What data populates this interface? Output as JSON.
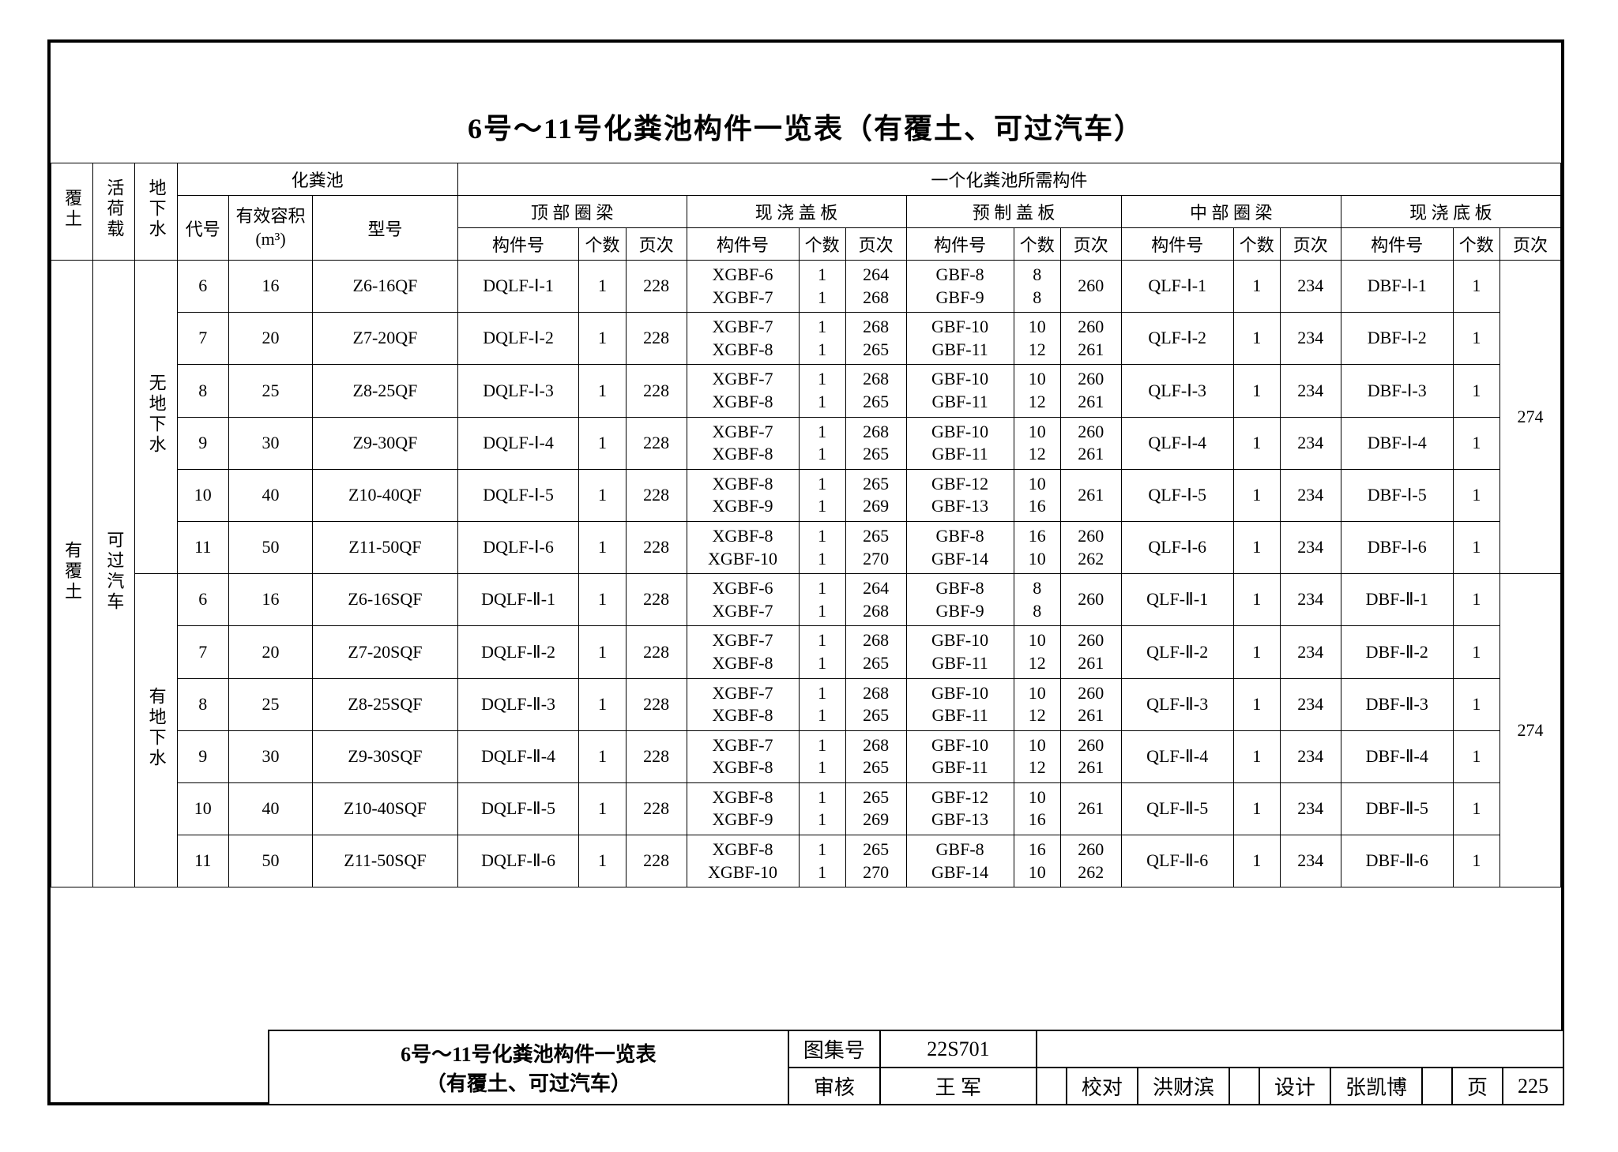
{
  "title": "6号～11号化粪池构件一览表（有覆土、可过汽车）",
  "header": {
    "col_futu": "覆土",
    "col_hehe": "活荷载",
    "col_dixiashui": "地下水",
    "huafenchi": "化粪池",
    "yige": "一个化粪池所需构件",
    "daihao": "代号",
    "rongji": "有效容积\n(m³)",
    "xinghao": "型号",
    "dingbu": "顶 部 圈 梁",
    "xianjiao1": "现 浇 盖 板",
    "yuzhi": "预 制 盖 板",
    "zhongbu": "中 部 圈 梁",
    "xianjiao2": "现 浇 底 板",
    "gjh": "构件号",
    "gs": "个数",
    "yc": "页次"
  },
  "left": {
    "futu": "有覆土",
    "hehe": "可过汽车",
    "wudixia": "无地下水",
    "youdixia": "有地下水"
  },
  "set1_page": "274",
  "set2_page": "274",
  "rows1": [
    {
      "dh": "6",
      "rj": "16",
      "xh": "Z6-16QF",
      "db": "DQLF-Ⅰ-1",
      "dbn": "1",
      "dby": "228",
      "xg": "XGBF-6\nXGBF-7",
      "xgn": "1\n1",
      "xgy": "264\n268",
      "yz": "GBF-8\nGBF-9",
      "yzn": "8\n8",
      "yzy": "260",
      "zb": "QLF-Ⅰ-1",
      "zbn": "1",
      "zby": "234",
      "dp": "DBF-Ⅰ-1",
      "dpn": "1"
    },
    {
      "dh": "7",
      "rj": "20",
      "xh": "Z7-20QF",
      "db": "DQLF-Ⅰ-2",
      "dbn": "1",
      "dby": "228",
      "xg": "XGBF-7\nXGBF-8",
      "xgn": "1\n1",
      "xgy": "268\n265",
      "yz": "GBF-10\nGBF-11",
      "yzn": "10\n12",
      "yzy": "260\n261",
      "zb": "QLF-Ⅰ-2",
      "zbn": "1",
      "zby": "234",
      "dp": "DBF-Ⅰ-2",
      "dpn": "1"
    },
    {
      "dh": "8",
      "rj": "25",
      "xh": "Z8-25QF",
      "db": "DQLF-Ⅰ-3",
      "dbn": "1",
      "dby": "228",
      "xg": "XGBF-7\nXGBF-8",
      "xgn": "1\n1",
      "xgy": "268\n265",
      "yz": "GBF-10\nGBF-11",
      "yzn": "10\n12",
      "yzy": "260\n261",
      "zb": "QLF-Ⅰ-3",
      "zbn": "1",
      "zby": "234",
      "dp": "DBF-Ⅰ-3",
      "dpn": "1"
    },
    {
      "dh": "9",
      "rj": "30",
      "xh": "Z9-30QF",
      "db": "DQLF-Ⅰ-4",
      "dbn": "1",
      "dby": "228",
      "xg": "XGBF-7\nXGBF-8",
      "xgn": "1\n1",
      "xgy": "268\n265",
      "yz": "GBF-10\nGBF-11",
      "yzn": "10\n12",
      "yzy": "260\n261",
      "zb": "QLF-Ⅰ-4",
      "zbn": "1",
      "zby": "234",
      "dp": "DBF-Ⅰ-4",
      "dpn": "1"
    },
    {
      "dh": "10",
      "rj": "40",
      "xh": "Z10-40QF",
      "db": "DQLF-Ⅰ-5",
      "dbn": "1",
      "dby": "228",
      "xg": "XGBF-8\nXGBF-9",
      "xgn": "1\n1",
      "xgy": "265\n269",
      "yz": "GBF-12\nGBF-13",
      "yzn": "10\n16",
      "yzy": "261",
      "zb": "QLF-Ⅰ-5",
      "zbn": "1",
      "zby": "234",
      "dp": "DBF-Ⅰ-5",
      "dpn": "1"
    },
    {
      "dh": "11",
      "rj": "50",
      "xh": "Z11-50QF",
      "db": "DQLF-Ⅰ-6",
      "dbn": "1",
      "dby": "228",
      "xg": "XGBF-8\nXGBF-10",
      "xgn": "1\n1",
      "xgy": "265\n270",
      "yz": "GBF-8\nGBF-14",
      "yzn": "16\n10",
      "yzy": "260\n262",
      "zb": "QLF-Ⅰ-6",
      "zbn": "1",
      "zby": "234",
      "dp": "DBF-Ⅰ-6",
      "dpn": "1"
    }
  ],
  "rows2": [
    {
      "dh": "6",
      "rj": "16",
      "xh": "Z6-16SQF",
      "db": "DQLF-Ⅱ-1",
      "dbn": "1",
      "dby": "228",
      "xg": "XGBF-6\nXGBF-7",
      "xgn": "1\n1",
      "xgy": "264\n268",
      "yz": "GBF-8\nGBF-9",
      "yzn": "8\n8",
      "yzy": "260",
      "zb": "QLF-Ⅱ-1",
      "zbn": "1",
      "zby": "234",
      "dp": "DBF-Ⅱ-1",
      "dpn": "1"
    },
    {
      "dh": "7",
      "rj": "20",
      "xh": "Z7-20SQF",
      "db": "DQLF-Ⅱ-2",
      "dbn": "1",
      "dby": "228",
      "xg": "XGBF-7\nXGBF-8",
      "xgn": "1\n1",
      "xgy": "268\n265",
      "yz": "GBF-10\nGBF-11",
      "yzn": "10\n12",
      "yzy": "260\n261",
      "zb": "QLF-Ⅱ-2",
      "zbn": "1",
      "zby": "234",
      "dp": "DBF-Ⅱ-2",
      "dpn": "1"
    },
    {
      "dh": "8",
      "rj": "25",
      "xh": "Z8-25SQF",
      "db": "DQLF-Ⅱ-3",
      "dbn": "1",
      "dby": "228",
      "xg": "XGBF-7\nXGBF-8",
      "xgn": "1\n1",
      "xgy": "268\n265",
      "yz": "GBF-10\nGBF-11",
      "yzn": "10\n12",
      "yzy": "260\n261",
      "zb": "QLF-Ⅱ-3",
      "zbn": "1",
      "zby": "234",
      "dp": "DBF-Ⅱ-3",
      "dpn": "1"
    },
    {
      "dh": "9",
      "rj": "30",
      "xh": "Z9-30SQF",
      "db": "DQLF-Ⅱ-4",
      "dbn": "1",
      "dby": "228",
      "xg": "XGBF-7\nXGBF-8",
      "xgn": "1\n1",
      "xgy": "268\n265",
      "yz": "GBF-10\nGBF-11",
      "yzn": "10\n12",
      "yzy": "260\n261",
      "zb": "QLF-Ⅱ-4",
      "zbn": "1",
      "zby": "234",
      "dp": "DBF-Ⅱ-4",
      "dpn": "1"
    },
    {
      "dh": "10",
      "rj": "40",
      "xh": "Z10-40SQF",
      "db": "DQLF-Ⅱ-5",
      "dbn": "1",
      "dby": "228",
      "xg": "XGBF-8\nXGBF-9",
      "xgn": "1\n1",
      "xgy": "265\n269",
      "yz": "GBF-12\nGBF-13",
      "yzn": "10\n16",
      "yzy": "261",
      "zb": "QLF-Ⅱ-5",
      "zbn": "1",
      "zby": "234",
      "dp": "DBF-Ⅱ-5",
      "dpn": "1"
    },
    {
      "dh": "11",
      "rj": "50",
      "xh": "Z11-50SQF",
      "db": "DQLF-Ⅱ-6",
      "dbn": "1",
      "dby": "228",
      "xg": "XGBF-8\nXGBF-10",
      "xgn": "1\n1",
      "xgy": "265\n270",
      "yz": "GBF-8\nGBF-14",
      "yzn": "16\n10",
      "yzy": "260\n262",
      "zb": "QLF-Ⅱ-6",
      "zbn": "1",
      "zby": "234",
      "dp": "DBF-Ⅱ-6",
      "dpn": "1"
    }
  ],
  "titleblock": {
    "t1": "6号～11号化粪池构件一览表",
    "t2": "（有覆土、可过汽车）",
    "tujihao_l": "图集号",
    "tujihao_v": "22S701",
    "shenhe": "审核",
    "shenhe_n": "王 军",
    "sig1": "",
    "jiaodui": "校对",
    "jiaodui_n": "洪财滨",
    "sig2": "",
    "sheji": "设计",
    "sheji_n": "张凯博",
    "sig3": "",
    "ye": "页",
    "ye_v": "225"
  }
}
